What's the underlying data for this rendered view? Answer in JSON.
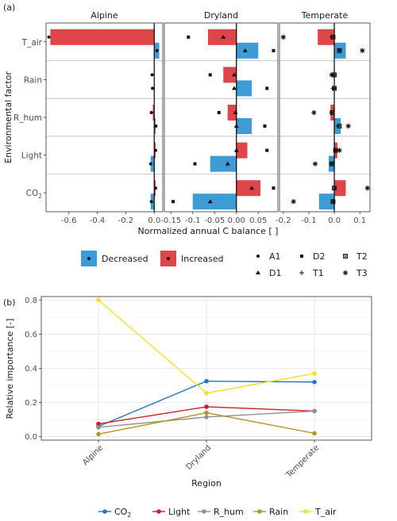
{
  "chart_data": [
    {
      "type": "bar",
      "panel_label": "(a)",
      "facets": [
        "Alpine",
        "Dryland",
        "Temperate"
      ],
      "factors": [
        "T_air",
        "Rain",
        "R_hum",
        "Light",
        "CO2"
      ],
      "factor_labels": {
        "T_air": {
          "main": "T_air",
          "sub": ""
        },
        "Rain": {
          "main": "Rain",
          "sub": ""
        },
        "R_hum": {
          "main": "R_hum",
          "sub": ""
        },
        "Light": {
          "main": "Light",
          "sub": ""
        },
        "CO2": {
          "main": "CO",
          "sub": "2"
        }
      },
      "xlabel": "Normalized annual C balance [ ]",
      "ylabel": "Environmental factor",
      "x_ticks": {
        "Alpine": [
          "-0.6",
          "-0.4",
          "-0.2",
          "0.0"
        ],
        "Dryland": [
          "-0.15",
          "-0.1",
          "-0.05",
          "0.00",
          "0.05"
        ],
        "Temperate": [
          "-0.2",
          "-0.1",
          "0.0",
          "0.1"
        ]
      },
      "x_tick_values": {
        "Alpine": [
          -0.6,
          -0.4,
          -0.2,
          0.0
        ],
        "Dryland": [
          -0.15,
          -0.1,
          -0.05,
          0.0,
          0.05
        ],
        "Temperate": [
          -0.2,
          -0.1,
          0.0,
          0.1
        ]
      },
      "xlim": {
        "Alpine": [
          -0.76,
          0.06
        ],
        "Dryland": [
          -0.165,
          0.095
        ],
        "Temperate": [
          -0.215,
          0.14
        ]
      },
      "colors": {
        "Decreased": "#3d9bd6",
        "Increased": "#e0454a"
      },
      "bars": {
        "Alpine": {
          "T_air": {
            "Increased": -0.73,
            "Decreased": 0.035
          },
          "Rain": {
            "Increased": 0.0,
            "Decreased": 0.0
          },
          "R_hum": {
            "Increased": -0.01,
            "Decreased": 0.01
          },
          "Light": {
            "Increased": 0.01,
            "Decreased": -0.025
          },
          "CO2": {
            "Increased": 0.01,
            "Decreased": -0.025
          }
        },
        "Dryland": {
          "T_air": {
            "Increased": -0.065,
            "Decreased": 0.05
          },
          "Rain": {
            "Increased": -0.03,
            "Decreased": 0.035
          },
          "R_hum": {
            "Increased": -0.02,
            "Decreased": 0.035
          },
          "Light": {
            "Increased": 0.025,
            "Decreased": -0.06
          },
          "CO2": {
            "Increased": 0.055,
            "Decreased": -0.1
          }
        },
        "Temperate": {
          "T_air": {
            "Increased": -0.065,
            "Decreased": 0.045
          },
          "Rain": {
            "Increased": 0.0,
            "Decreased": 0.0
          },
          "R_hum": {
            "Increased": -0.015,
            "Decreased": 0.025
          },
          "Light": {
            "Increased": 0.012,
            "Decreased": -0.022
          },
          "CO2": {
            "Increased": 0.045,
            "Decreased": -0.06
          }
        }
      },
      "points": [
        {
          "facet": "Alpine",
          "factor": "T_air",
          "site": "A1",
          "dir": "Increased",
          "x": -0.74
        },
        {
          "facet": "Alpine",
          "factor": "T_air",
          "site": "A1",
          "dir": "Decreased",
          "x": 0.02
        },
        {
          "facet": "Alpine",
          "factor": "Rain",
          "site": "A1",
          "dir": "Increased",
          "x": -0.015
        },
        {
          "facet": "Alpine",
          "factor": "Rain",
          "site": "A1",
          "dir": "Decreased",
          "x": -0.012
        },
        {
          "facet": "Alpine",
          "factor": "R_hum",
          "site": "A1",
          "dir": "Increased",
          "x": -0.02
        },
        {
          "facet": "Alpine",
          "factor": "R_hum",
          "site": "A1",
          "dir": "Decreased",
          "x": 0.012
        },
        {
          "facet": "Alpine",
          "factor": "Light",
          "site": "A1",
          "dir": "Increased",
          "x": 0.01
        },
        {
          "facet": "Alpine",
          "factor": "Light",
          "site": "A1",
          "dir": "Decreased",
          "x": -0.025
        },
        {
          "facet": "Alpine",
          "factor": "CO2",
          "site": "A1",
          "dir": "Increased",
          "x": 0.01
        },
        {
          "facet": "Alpine",
          "factor": "CO2",
          "site": "A1",
          "dir": "Decreased",
          "x": -0.02
        },
        {
          "facet": "Dryland",
          "factor": "T_air",
          "site": "D2",
          "dir": "Increased",
          "x": -0.11
        },
        {
          "facet": "Dryland",
          "factor": "T_air",
          "site": "D1",
          "dir": "Increased",
          "x": -0.03
        },
        {
          "facet": "Dryland",
          "factor": "T_air",
          "site": "D2",
          "dir": "Decreased",
          "x": 0.085
        },
        {
          "facet": "Dryland",
          "factor": "T_air",
          "site": "D1",
          "dir": "Decreased",
          "x": 0.02
        },
        {
          "facet": "Dryland",
          "factor": "Rain",
          "site": "D2",
          "dir": "Increased",
          "x": -0.06
        },
        {
          "facet": "Dryland",
          "factor": "Rain",
          "site": "D1",
          "dir": "Increased",
          "x": -0.005
        },
        {
          "facet": "Dryland",
          "factor": "Rain",
          "site": "D2",
          "dir": "Decreased",
          "x": 0.07
        },
        {
          "facet": "Dryland",
          "factor": "Rain",
          "site": "D1",
          "dir": "Decreased",
          "x": -0.005
        },
        {
          "facet": "Dryland",
          "factor": "R_hum",
          "site": "D2",
          "dir": "Increased",
          "x": -0.04
        },
        {
          "facet": "Dryland",
          "factor": "R_hum",
          "site": "D1",
          "dir": "Increased",
          "x": -0.002
        },
        {
          "facet": "Dryland",
          "factor": "R_hum",
          "site": "D2",
          "dir": "Decreased",
          "x": 0.065
        },
        {
          "facet": "Dryland",
          "factor": "R_hum",
          "site": "D1",
          "dir": "Decreased",
          "x": 0.0
        },
        {
          "facet": "Dryland",
          "factor": "Light",
          "site": "D2",
          "dir": "Increased",
          "x": 0.07
        },
        {
          "facet": "Dryland",
          "factor": "Light",
          "site": "D1",
          "dir": "Increased",
          "x": 0.0
        },
        {
          "facet": "Dryland",
          "factor": "Light",
          "site": "D2",
          "dir": "Decreased",
          "x": -0.095
        },
        {
          "facet": "Dryland",
          "factor": "Light",
          "site": "D1",
          "dir": "Decreased",
          "x": -0.02
        },
        {
          "facet": "Dryland",
          "factor": "CO2",
          "site": "D2",
          "dir": "Increased",
          "x": 0.085
        },
        {
          "facet": "Dryland",
          "factor": "CO2",
          "site": "D1",
          "dir": "Increased",
          "x": 0.035
        },
        {
          "facet": "Dryland",
          "factor": "CO2",
          "site": "D2",
          "dir": "Decreased",
          "x": -0.145
        },
        {
          "facet": "Dryland",
          "factor": "CO2",
          "site": "D1",
          "dir": "Decreased",
          "x": -0.06
        },
        {
          "facet": "Temperate",
          "factor": "T_air",
          "site": "T3",
          "dir": "Increased",
          "x": -0.2
        },
        {
          "facet": "Temperate",
          "factor": "T_air",
          "site": "T2",
          "dir": "Increased",
          "x": -0.005
        },
        {
          "facet": "Temperate",
          "factor": "T_air",
          "site": "T1",
          "dir": "Increased",
          "x": -0.01
        },
        {
          "facet": "Temperate",
          "factor": "T_air",
          "site": "T3",
          "dir": "Decreased",
          "x": 0.11
        },
        {
          "facet": "Temperate",
          "factor": "T_air",
          "site": "T2",
          "dir": "Decreased",
          "x": 0.02
        },
        {
          "facet": "Temperate",
          "factor": "T_air",
          "site": "T1",
          "dir": "Decreased",
          "x": 0.02
        },
        {
          "facet": "Temperate",
          "factor": "Rain",
          "site": "T3",
          "dir": "Increased",
          "x": -0.01
        },
        {
          "facet": "Temperate",
          "factor": "Rain",
          "site": "T2",
          "dir": "Increased",
          "x": 0.0
        },
        {
          "facet": "Temperate",
          "factor": "Rain",
          "site": "T1",
          "dir": "Increased",
          "x": 0.0
        },
        {
          "facet": "Temperate",
          "factor": "Rain",
          "site": "T3",
          "dir": "Decreased",
          "x": 0.0
        },
        {
          "facet": "Temperate",
          "factor": "Rain",
          "site": "T2",
          "dir": "Decreased",
          "x": 0.0
        },
        {
          "facet": "Temperate",
          "factor": "Rain",
          "site": "T1",
          "dir": "Decreased",
          "x": -0.005
        },
        {
          "facet": "Temperate",
          "factor": "R_hum",
          "site": "T3",
          "dir": "Increased",
          "x": -0.08
        },
        {
          "facet": "Temperate",
          "factor": "R_hum",
          "site": "T2",
          "dir": "Increased",
          "x": -0.008
        },
        {
          "facet": "Temperate",
          "factor": "R_hum",
          "site": "T1",
          "dir": "Increased",
          "x": -0.01
        },
        {
          "facet": "Temperate",
          "factor": "R_hum",
          "site": "T3",
          "dir": "Decreased",
          "x": 0.055
        },
        {
          "facet": "Temperate",
          "factor": "R_hum",
          "site": "T2",
          "dir": "Decreased",
          "x": 0.02
        },
        {
          "facet": "Temperate",
          "factor": "R_hum",
          "site": "T1",
          "dir": "Decreased",
          "x": 0.015
        },
        {
          "facet": "Temperate",
          "factor": "Light",
          "site": "T3",
          "dir": "Increased",
          "x": 0.02
        },
        {
          "facet": "Temperate",
          "factor": "Light",
          "site": "T2",
          "dir": "Increased",
          "x": 0.005
        },
        {
          "facet": "Temperate",
          "factor": "Light",
          "site": "T1",
          "dir": "Increased",
          "x": 0.005
        },
        {
          "facet": "Temperate",
          "factor": "Light",
          "site": "T3",
          "dir": "Decreased",
          "x": -0.075
        },
        {
          "facet": "Temperate",
          "factor": "Light",
          "site": "T2",
          "dir": "Decreased",
          "x": -0.01
        },
        {
          "facet": "Temperate",
          "factor": "Light",
          "site": "T1",
          "dir": "Decreased",
          "x": -0.01
        },
        {
          "facet": "Temperate",
          "factor": "CO2",
          "site": "T3",
          "dir": "Increased",
          "x": 0.13
        },
        {
          "facet": "Temperate",
          "factor": "CO2",
          "site": "T2",
          "dir": "Increased",
          "x": 0.0
        },
        {
          "facet": "Temperate",
          "factor": "CO2",
          "site": "T1",
          "dir": "Increased",
          "x": 0.0
        },
        {
          "facet": "Temperate",
          "factor": "CO2",
          "site": "T3",
          "dir": "Decreased",
          "x": -0.16
        },
        {
          "facet": "Temperate",
          "factor": "CO2",
          "site": "T2",
          "dir": "Decreased",
          "x": -0.005
        },
        {
          "facet": "Temperate",
          "factor": "CO2",
          "site": "T1",
          "dir": "Decreased",
          "x": -0.005
        }
      ],
      "legend_fill": [
        {
          "label": "Decreased",
          "color": "#3d9bd6"
        },
        {
          "label": "Increased",
          "color": "#e0454a"
        }
      ],
      "legend_shape": [
        "A1",
        "D2",
        "T2",
        "D1",
        "T1",
        "T3"
      ],
      "grid": false,
      "legend_placement": "bottom"
    },
    {
      "type": "line",
      "panel_label": "(b)",
      "categories": [
        "Alpine",
        "Dryland",
        "Temperate"
      ],
      "xlabel": "Region",
      "ylabel": "Relative importance [-]",
      "ylim": [
        -0.02,
        0.82
      ],
      "y_ticks": [
        "0.0",
        "0.2",
        "0.4",
        "0.6",
        "0.8"
      ],
      "y_tick_values": [
        0.0,
        0.2,
        0.4,
        0.6,
        0.8
      ],
      "series": [
        {
          "name": "CO",
          "sub": "2",
          "key": "CO2",
          "color": "#1f77c9",
          "values": [
            0.06,
            0.325,
            0.32
          ]
        },
        {
          "name": "Light",
          "sub": "",
          "key": "Light",
          "color": "#cc1f1f",
          "values": [
            0.075,
            0.175,
            0.15
          ]
        },
        {
          "name": "R_hum",
          "sub": "",
          "key": "R_hum",
          "color": "#909090",
          "values": [
            0.055,
            0.115,
            0.15
          ]
        },
        {
          "name": "Rain",
          "sub": "",
          "key": "Rain",
          "color": "#b3962a",
          "values": [
            0.015,
            0.14,
            0.02
          ]
        },
        {
          "name": "T_air",
          "sub": "",
          "key": "T_air",
          "color": "#f5e02a",
          "values": [
            0.8,
            0.255,
            0.37
          ]
        }
      ],
      "grid": true,
      "legend_placement": "bottom"
    }
  ]
}
